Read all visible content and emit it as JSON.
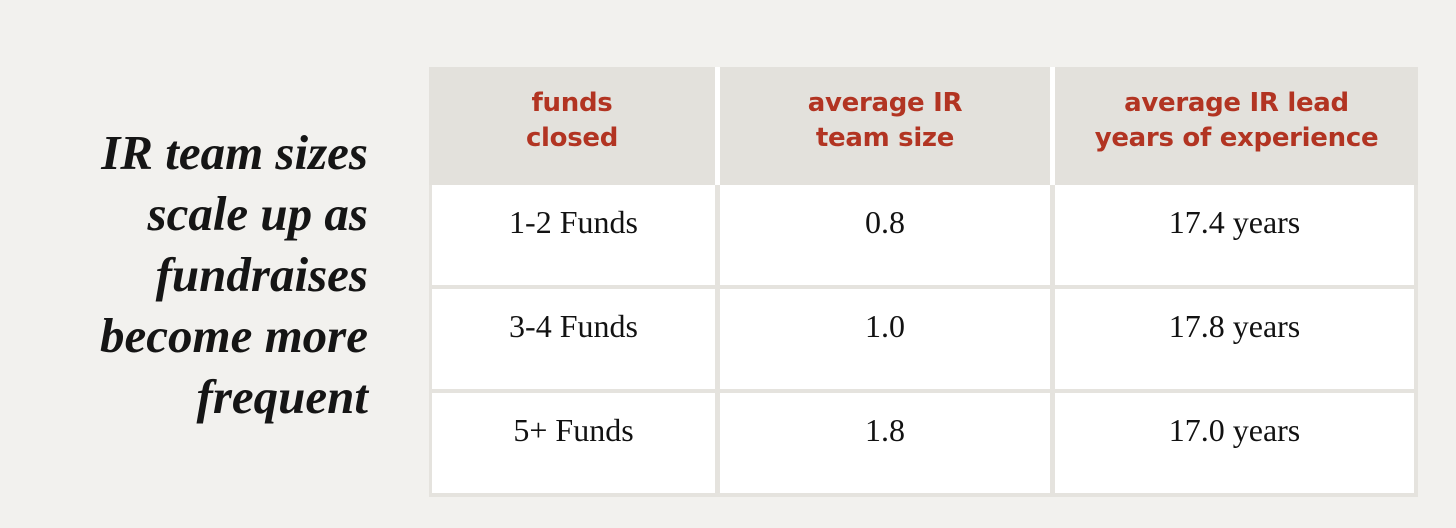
{
  "title": {
    "full": "IR team sizes scale up as fundraises become more frequent",
    "lines": [
      "IR team sizes",
      "scale up as",
      "fundraises",
      "become more",
      "frequent"
    ]
  },
  "table": {
    "headers": [
      {
        "line1": "funds",
        "line2": "closed",
        "label": "funds closed"
      },
      {
        "line1": "average IR",
        "line2": "team size",
        "label": "average IR team size"
      },
      {
        "line1": "average IR lead",
        "line2": "years of experience",
        "label": "average IR lead years of experience"
      }
    ],
    "rows": [
      [
        "1-2 Funds",
        "0.8",
        "17.4 years"
      ],
      [
        "3-4 Funds",
        "1.0",
        "17.8 years"
      ],
      [
        "5+ Funds",
        "1.8",
        "17.0 years"
      ]
    ]
  },
  "colors": {
    "accent_red": "#b23422",
    "header_bg": "#e3e1dc",
    "grid_line": "#e5e3de",
    "page_bg": "#f2f1ee",
    "cell_bg": "#ffffff",
    "text": "#151515"
  },
  "chart_data": {
    "type": "table",
    "title": "IR team sizes scale up as fundraises become more frequent",
    "columns": [
      "funds closed",
      "average IR team size",
      "average IR lead years of experience"
    ],
    "rows": [
      [
        "1-2 Funds",
        "0.8",
        "17.4 years"
      ],
      [
        "3-4 Funds",
        "1.0",
        "17.8 years"
      ],
      [
        "5+ Funds",
        "1.8",
        "17.0 years"
      ]
    ],
    "categories": [
      "1-2 Funds",
      "3-4 Funds",
      "5+ Funds"
    ],
    "series": [
      {
        "name": "average IR team size",
        "values": [
          0.8,
          1.0,
          1.8
        ]
      },
      {
        "name": "average IR lead years of experience",
        "values": [
          17.4,
          17.8,
          17.0
        ]
      }
    ],
    "layout": {
      "header_position": "top",
      "grid": true,
      "legend": false
    }
  }
}
